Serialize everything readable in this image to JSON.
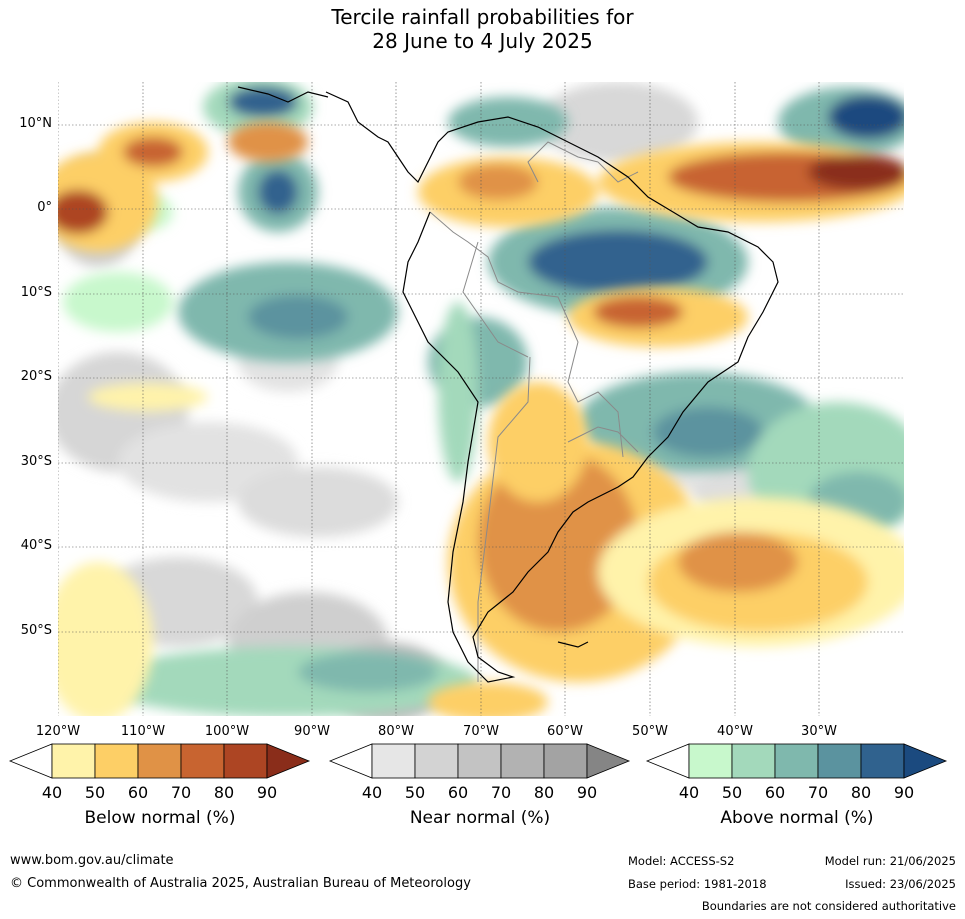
{
  "title": {
    "line1": "Tercile rainfall probabilities for",
    "line2": "28 June to 4 July 2025"
  },
  "map": {
    "lat_labels": [
      "10°N",
      "0°",
      "10°S",
      "20°S",
      "30°S",
      "40°S",
      "50°S"
    ],
    "lon_labels": [
      "120°W",
      "110°W",
      "100°W",
      "90°W",
      "80°W",
      "70°W",
      "60°W",
      "50°W",
      "40°W",
      "30°W"
    ]
  },
  "colorbars": [
    {
      "title": "Below normal (%)",
      "ticks": [
        "40",
        "50",
        "60",
        "70",
        "80",
        "90"
      ],
      "colors": [
        "#fff3aa",
        "#fdcf66",
        "#e09246",
        "#c86430",
        "#ad4523",
        "#8a2d1a"
      ]
    },
    {
      "title": "Near normal (%)",
      "ticks": [
        "40",
        "50",
        "60",
        "70",
        "80",
        "90"
      ],
      "colors": [
        "#e6e6e6",
        "#d3d3d3",
        "#c3c3c3",
        "#b2b2b2",
        "#a3a3a3",
        "#858585"
      ]
    },
    {
      "title": "Above normal (%)",
      "ticks": [
        "40",
        "50",
        "60",
        "70",
        "80",
        "90"
      ],
      "colors": [
        "#c8f8cc",
        "#a3d9bb",
        "#7fb8ad",
        "#5b939f",
        "#30628e",
        "#1b4a7f"
      ]
    }
  ],
  "footer": {
    "url": "www.bom.gov.au/climate",
    "copyright": "© Commonwealth of Australia 2025, Australian Bureau of Meteorology",
    "model": "Model: ACCESS-S2",
    "model_run": "Model run: 21/06/2025",
    "base_period": "Base period: 1981-2018",
    "issued": "Issued: 23/06/2025",
    "disclaimer": "Boundaries are not considered authoritative"
  }
}
